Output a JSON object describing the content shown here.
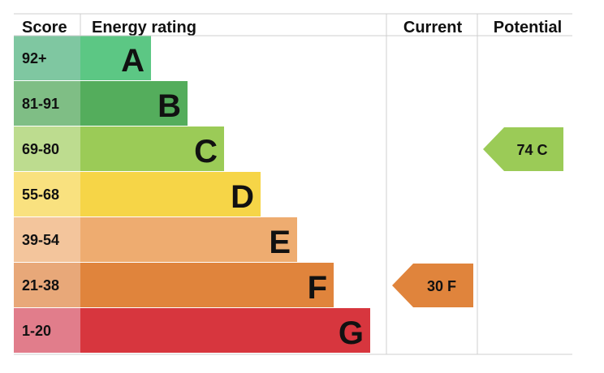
{
  "chart_data": {
    "type": "bar",
    "headers": {
      "score": "Score",
      "rating": "Energy rating",
      "current": "Current",
      "potential": "Potential"
    },
    "bands": [
      {
        "letter": "A",
        "range": "92+",
        "rank": 1,
        "color": "#5cc784",
        "score_bg": "#7fc7a1"
      },
      {
        "letter": "B",
        "range": "81-91",
        "rank": 2,
        "color": "#54ad5c",
        "score_bg": "#7fbe85"
      },
      {
        "letter": "C",
        "range": "69-80",
        "rank": 3,
        "color": "#9bcb57",
        "score_bg": "#bddc8f"
      },
      {
        "letter": "D",
        "range": "55-68",
        "rank": 4,
        "color": "#f6d547",
        "score_bg": "#f9e17f"
      },
      {
        "letter": "E",
        "range": "39-54",
        "rank": 5,
        "color": "#eeac70",
        "score_bg": "#f3c59c"
      },
      {
        "letter": "F",
        "range": "21-38",
        "rank": 6,
        "color": "#e0843c",
        "score_bg": "#e8a879"
      },
      {
        "letter": "G",
        "range": "1-20",
        "rank": 7,
        "color": "#d7363e",
        "score_bg": "#e17d8b"
      }
    ],
    "current": {
      "value": 30,
      "letter": "F",
      "label": "30  F"
    },
    "potential": {
      "value": 74,
      "letter": "C",
      "label": "74  C"
    }
  }
}
